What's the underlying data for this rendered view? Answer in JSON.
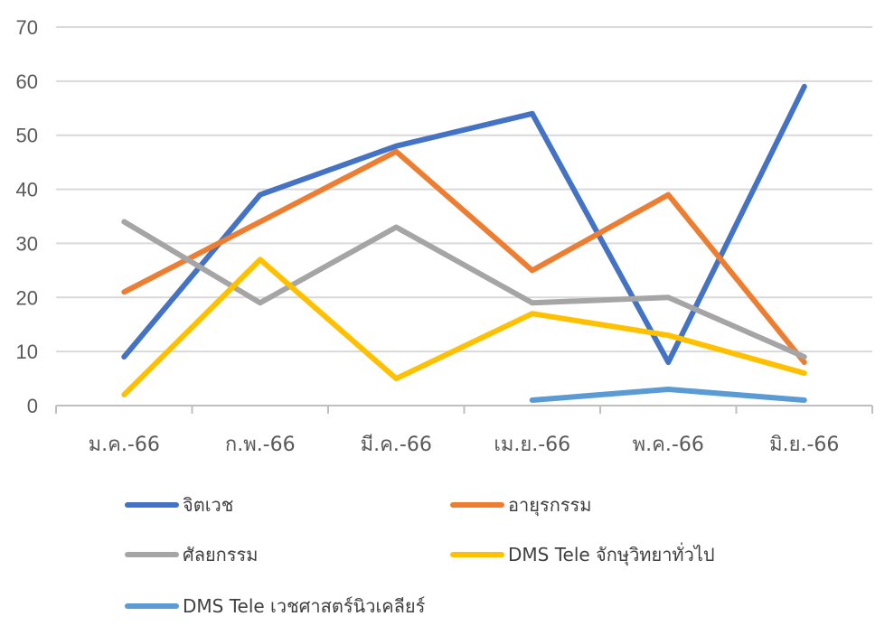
{
  "chart_data": {
    "type": "line",
    "title": "",
    "xlabel": "",
    "ylabel": "",
    "categories": [
      "ม.ค.-66",
      "ก.พ.-66",
      "มี.ค.-66",
      "เม.ย.-66",
      "พ.ค.-66",
      "มิ.ย.-66"
    ],
    "ylim": [
      0,
      70
    ],
    "yticks": [
      0,
      10,
      20,
      30,
      40,
      50,
      60,
      70
    ],
    "grid": true,
    "legend_position": "bottom",
    "series": [
      {
        "name": "จิตเวช",
        "color": "#4472C4",
        "values": [
          9,
          39,
          48,
          54,
          8,
          59
        ]
      },
      {
        "name": "อายุรกรรม",
        "color": "#ED7D31",
        "values": [
          21,
          34,
          47,
          25,
          39,
          8
        ]
      },
      {
        "name": "ศัลยกรรม",
        "color": "#A5A5A5",
        "values": [
          34,
          19,
          33,
          19,
          20,
          9
        ]
      },
      {
        "name": "DMS Tele จักษุวิทยาทั่วไป",
        "color": "#FFC000",
        "values": [
          2,
          27,
          5,
          17,
          13,
          6
        ]
      },
      {
        "name": "DMS Tele เวชศาสตร์นิวเคลียร์",
        "color": "#5B9BD5",
        "values": [
          null,
          null,
          null,
          1,
          3,
          1
        ]
      }
    ]
  }
}
